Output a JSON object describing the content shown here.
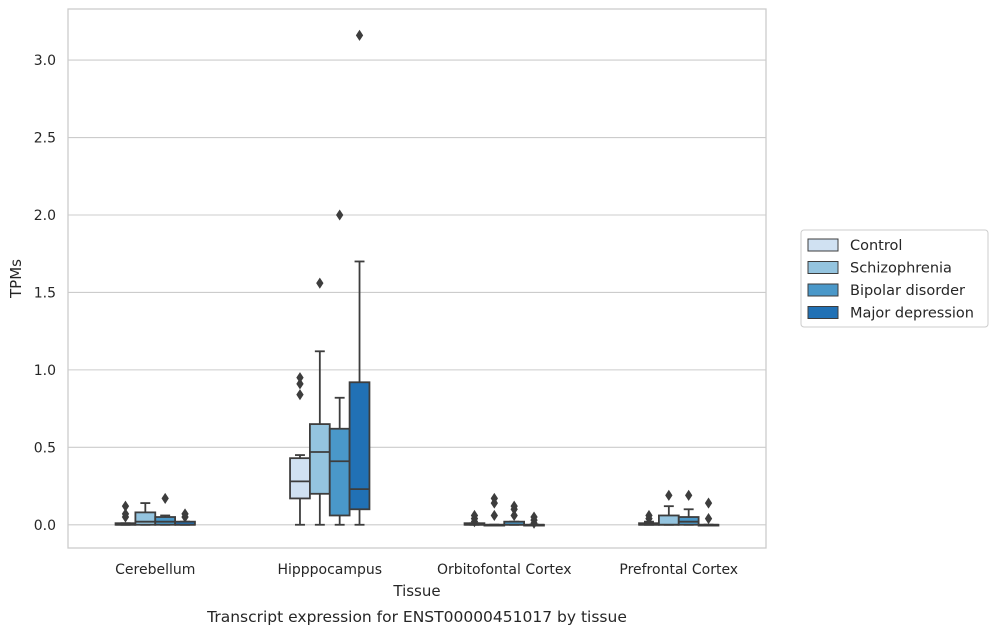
{
  "caption": "Transcript expression for ENST00000451017 by tissue",
  "chart_data": {
    "type": "box",
    "xlabel": "Tissue",
    "ylabel": "TPMs",
    "ylim": [
      -0.15,
      3.33
    ],
    "yticks": [
      "0.0",
      "0.5",
      "1.0",
      "1.5",
      "2.0",
      "2.5",
      "3.0"
    ],
    "grid": "horizontal",
    "legend_position": "right",
    "categories": [
      "Cerebellum",
      "Hipppocampus",
      "Orbitofontal Cortex",
      "Prefrontal Cortex"
    ],
    "series": [
      {
        "name": "Control",
        "color": "#d0e1f2",
        "boxes": [
          {
            "min": 0.0,
            "q1": 0.0,
            "median": 0.0,
            "q3": 0.01,
            "max": 0.01,
            "outliers": [
              0.05,
              0.07,
              0.12
            ]
          },
          {
            "min": 0.0,
            "q1": 0.17,
            "median": 0.28,
            "q3": 0.43,
            "max": 0.45,
            "outliers": [
              0.84,
              0.91,
              0.95
            ]
          },
          {
            "min": 0.0,
            "q1": 0.0,
            "median": 0.0,
            "q3": 0.01,
            "max": 0.01,
            "outliers": [
              0.02,
              0.04,
              0.06
            ]
          },
          {
            "min": 0.0,
            "q1": 0.0,
            "median": 0.0,
            "q3": 0.01,
            "max": 0.02,
            "outliers": [
              0.04,
              0.06
            ]
          }
        ]
      },
      {
        "name": "Schizophrenia",
        "color": "#94c4df",
        "boxes": [
          {
            "min": 0.0,
            "q1": 0.0,
            "median": 0.02,
            "q3": 0.08,
            "max": 0.14,
            "outliers": []
          },
          {
            "min": 0.0,
            "q1": 0.2,
            "median": 0.47,
            "q3": 0.65,
            "max": 1.12,
            "outliers": [
              1.56
            ]
          },
          {
            "min": 0.0,
            "q1": 0.0,
            "median": 0.0,
            "q3": 0.0,
            "max": 0.0,
            "outliers": [
              0.06,
              0.14,
              0.17
            ]
          },
          {
            "min": 0.0,
            "q1": 0.0,
            "median": 0.0,
            "q3": 0.06,
            "max": 0.12,
            "outliers": [
              0.19
            ]
          }
        ]
      },
      {
        "name": "Bipolar disorder",
        "color": "#4a98c9",
        "boxes": [
          {
            "min": 0.0,
            "q1": 0.0,
            "median": 0.02,
            "q3": 0.05,
            "max": 0.06,
            "outliers": [
              0.17
            ]
          },
          {
            "min": 0.0,
            "q1": 0.06,
            "median": 0.41,
            "q3": 0.62,
            "max": 0.82,
            "outliers": [
              2.0
            ]
          },
          {
            "min": 0.0,
            "q1": 0.0,
            "median": 0.0,
            "q3": 0.02,
            "max": 0.02,
            "outliers": [
              0.06,
              0.1,
              0.12
            ]
          },
          {
            "min": 0.0,
            "q1": 0.0,
            "median": 0.02,
            "q3": 0.05,
            "max": 0.1,
            "outliers": [
              0.19
            ]
          }
        ]
      },
      {
        "name": "Major depression",
        "color": "#2171b5",
        "boxes": [
          {
            "min": 0.0,
            "q1": 0.0,
            "median": 0.0,
            "q3": 0.02,
            "max": 0.02,
            "outliers": [
              0.05,
              0.07
            ]
          },
          {
            "min": 0.0,
            "q1": 0.1,
            "median": 0.23,
            "q3": 0.92,
            "max": 1.7,
            "outliers": [
              3.16
            ]
          },
          {
            "min": 0.0,
            "q1": 0.0,
            "median": 0.0,
            "q3": 0.0,
            "max": 0.0,
            "outliers": [
              0.01,
              0.03,
              0.05
            ]
          },
          {
            "min": 0.0,
            "q1": 0.0,
            "median": 0.0,
            "q3": 0.0,
            "max": 0.0,
            "outliers": [
              0.04,
              0.14
            ]
          }
        ]
      }
    ]
  }
}
